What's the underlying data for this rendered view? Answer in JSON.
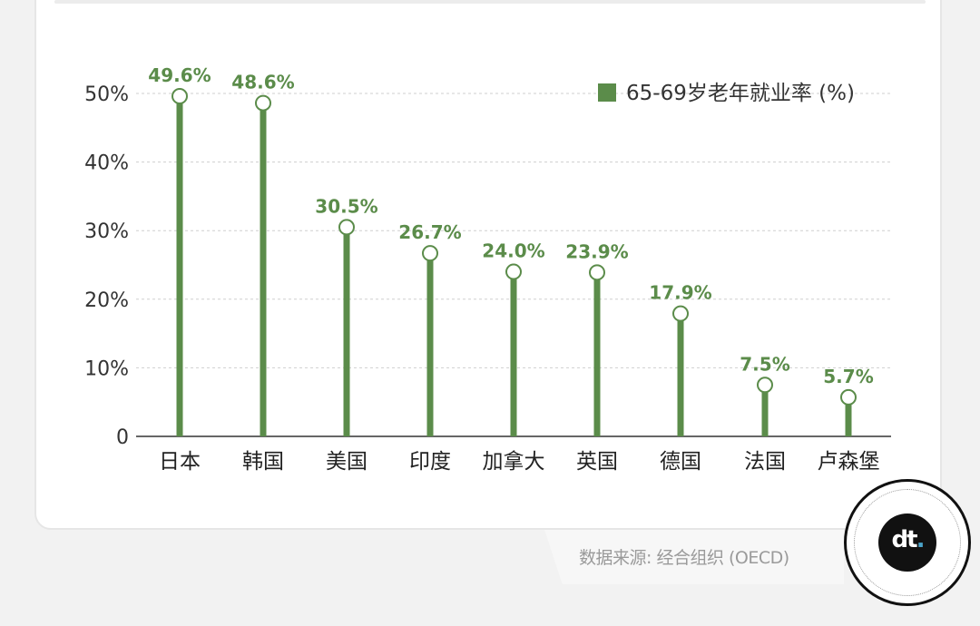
{
  "chart_data": {
    "type": "bar",
    "categories": [
      "日本",
      "韩国",
      "美国",
      "印度",
      "加拿大",
      "英国",
      "德国",
      "法国",
      "卢森堡"
    ],
    "series": [
      {
        "name": "65-69岁老年就业率 (%)",
        "values": [
          49.6,
          48.6,
          30.5,
          26.7,
          24.0,
          23.9,
          17.9,
          7.5,
          5.7
        ],
        "labels": [
          "49.6%",
          "48.6%",
          "30.5%",
          "26.7%",
          "24.0%",
          "23.9%",
          "17.9%",
          "7.5%",
          "5.7%"
        ]
      }
    ],
    "yticks": [
      0,
      10,
      20,
      30,
      40,
      50
    ],
    "ytick_labels": [
      "0",
      "10%",
      "20%",
      "30%",
      "40%",
      "50%"
    ],
    "ylim": [
      0,
      50
    ],
    "grid": true,
    "legend_position": "top-right",
    "style": "lollipop"
  },
  "colors": {
    "bar": "#5b8c4a",
    "label": "#5b8c4a",
    "axis_text": "#333333",
    "grid": "#cfcfcf"
  },
  "footer": {
    "source": "数据来源: 经合组织 (OECD)"
  },
  "badge": {
    "icon": "dt-logo-icon",
    "logo_text": "dt",
    "logo_dot": "."
  }
}
